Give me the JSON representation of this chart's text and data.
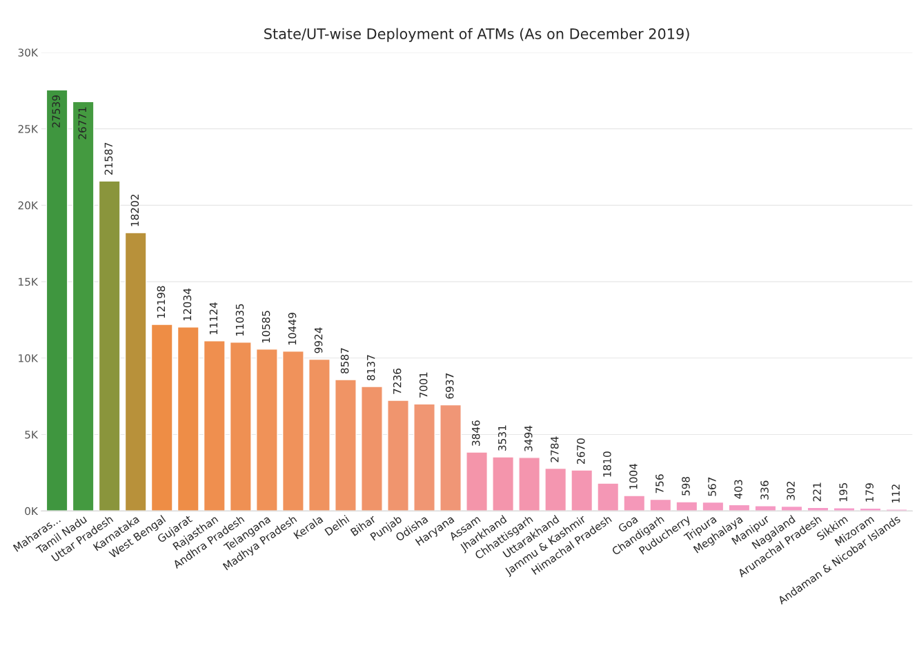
{
  "chart_data": {
    "type": "bar",
    "title": "State/UT-wise Deployment of ATMs (As on December 2019)",
    "categories": [
      "Maharas...",
      "Tamil Nadu",
      "Uttar Pradesh",
      "Karnataka",
      "West Bengal",
      "Gujarat",
      "Rajasthan",
      "Andhra Pradesh",
      "Telangana",
      "Madhya Pradesh",
      "Kerala",
      "Delhi",
      "Bihar",
      "Punjab",
      "Odisha",
      "Haryana",
      "Assam",
      "Jharkhand",
      "Chhattisgarh",
      "Uttarakhand",
      "Jammu & Kashmir",
      "Himachal Pradesh",
      "Goa",
      "Chandigarh",
      "Puducherry",
      "Tripura",
      "Meghalaya",
      "Manipur",
      "Nagaland",
      "Arunachal Pradesh",
      "Sikkim",
      "Mizoram",
      "Andaman & Nicobar Islands"
    ],
    "values": [
      27539,
      26771,
      21587,
      18202,
      12198,
      12034,
      11124,
      11035,
      10585,
      10449,
      9924,
      8587,
      8137,
      7236,
      7001,
      6937,
      3846,
      3531,
      3494,
      2784,
      2670,
      1810,
      1004,
      756,
      598,
      567,
      403,
      336,
      302,
      221,
      195,
      179,
      112
    ],
    "colors": [
      "#3f963f",
      "#449a40",
      "#8a953c",
      "#b8913a",
      "#ee8d45",
      "#ee8d47",
      "#ef8f4f",
      "#ef9053",
      "#f09258",
      "#f0925b",
      "#f0935f",
      "#f09465",
      "#f09469",
      "#f0956e",
      "#f09673",
      "#f09676",
      "#f495aa",
      "#f495ac",
      "#f495ae",
      "#f496b0",
      "#f496b2",
      "#f497b5",
      "#f598b9",
      "#f598bb",
      "#f598bd",
      "#f599bf",
      "#f599c1",
      "#f599c3",
      "#f69ac5",
      "#f69ac7",
      "#f69ac9",
      "#f69bcb",
      "#f69bcd"
    ],
    "ylim": [
      0,
      30000
    ],
    "yticks": [
      {
        "value": 0,
        "label": "0K"
      },
      {
        "value": 5000,
        "label": "5K"
      },
      {
        "value": 10000,
        "label": "10K"
      },
      {
        "value": 15000,
        "label": "15K"
      },
      {
        "value": 20000,
        "label": "20K"
      },
      {
        "value": 25000,
        "label": "25K"
      },
      {
        "value": 30000,
        "label": "30K"
      }
    ],
    "grid": "y",
    "data_labels": true
  }
}
